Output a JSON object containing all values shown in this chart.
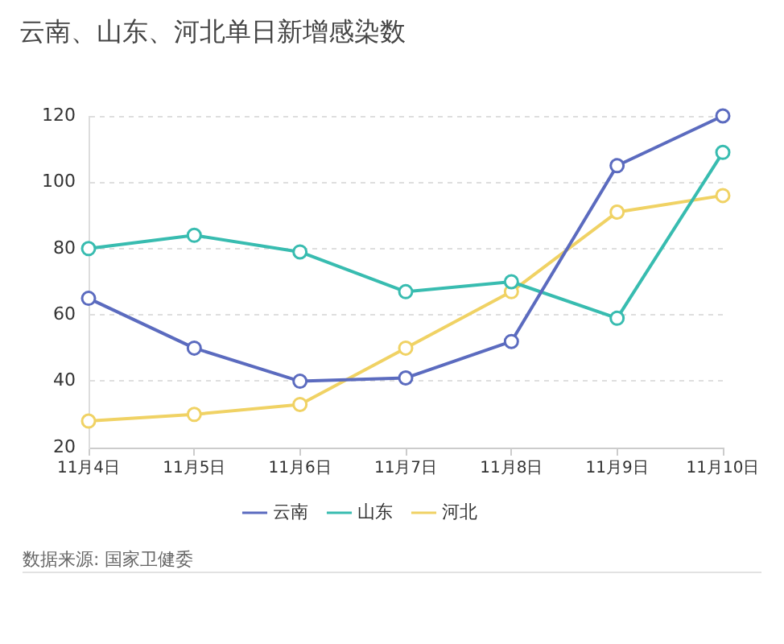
{
  "chart_data": {
    "type": "line",
    "title": "云南、山东、河北单日新增感染数",
    "categories": [
      "11月4日",
      "11月5日",
      "11月6日",
      "11月7日",
      "11月8日",
      "11月9日",
      "11月10日"
    ],
    "series": [
      {
        "name": "云南",
        "color": "#5b6bbf",
        "values": [
          65,
          50,
          40,
          41,
          52,
          105,
          120
        ]
      },
      {
        "name": "山东",
        "color": "#38bcb0",
        "values": [
          80,
          84,
          79,
          67,
          70,
          59,
          109
        ]
      },
      {
        "name": "河北",
        "color": "#f0d264",
        "values": [
          28,
          30,
          33,
          50,
          67,
          91,
          96
        ]
      }
    ],
    "ylim": [
      20,
      120
    ],
    "yticks": [
      20,
      40,
      60,
      80,
      100,
      120
    ],
    "grid": "y",
    "legend": "bottom",
    "marker": "circle",
    "annotations": [
      "数据来源: 国家卫健委"
    ]
  }
}
